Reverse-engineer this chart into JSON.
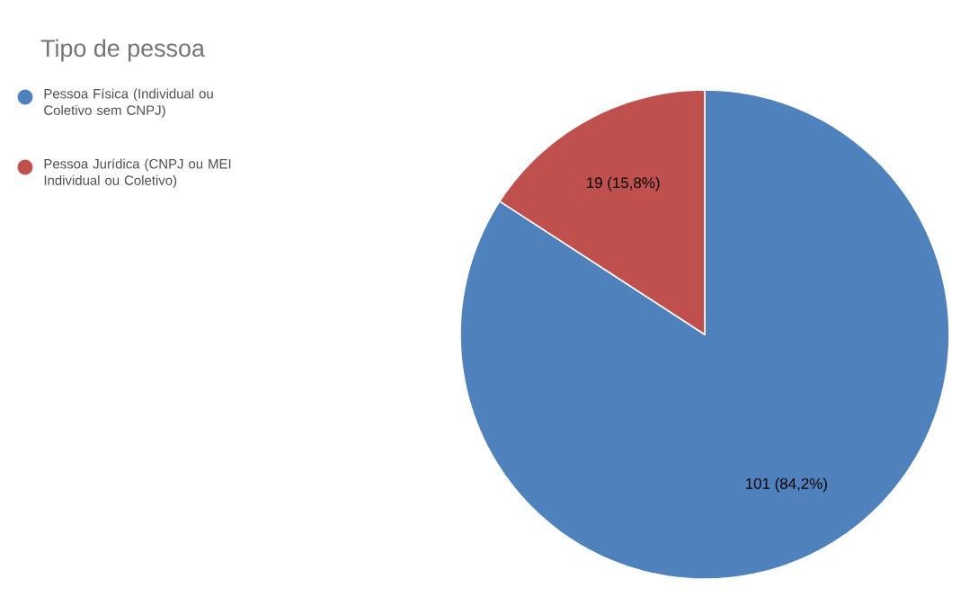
{
  "chart_data": {
    "type": "pie",
    "title": "Tipo de pessoa",
    "categories": [
      "Pessoa Física (Individual ou Coletivo sem CNPJ)",
      "Pessoa Jurídica (CNPJ ou MEI Individual ou Coletivo)"
    ],
    "values": [
      101,
      19
    ],
    "colors": [
      "#4f81bd",
      "#c0504d"
    ],
    "value_labels": [
      "101 (84,2%)",
      "19 (15,8%)"
    ],
    "legend": "top left"
  }
}
